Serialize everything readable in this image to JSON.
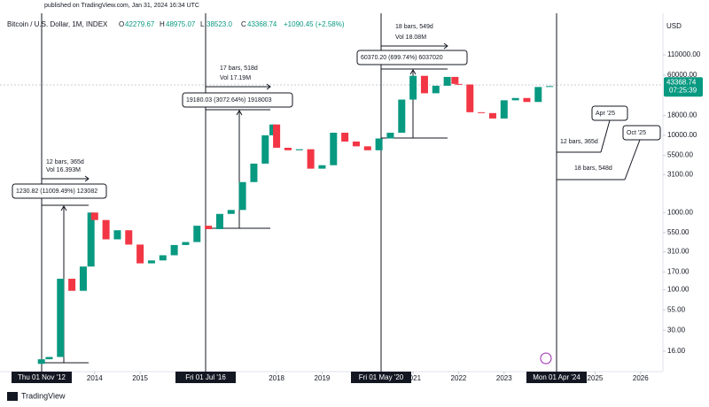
{
  "published": "published on TradingView.com, Jan 31, 2024 16:34 UTC",
  "footer": "TradingView",
  "chart_data": {
    "type": "candlestick",
    "title": "Bitcoin / U.S. Dollar, 1M, INDEX",
    "ohlc": [
      {
        "label": "O",
        "value": "42279.67"
      },
      {
        "label": "H",
        "value": "48975.07"
      },
      {
        "label": "L",
        "value": "38523.0"
      },
      {
        "label": "C",
        "value": "43368.74"
      }
    ],
    "change": "+1090.45 (+2.58%)",
    "currency": "USD",
    "last_price": {
      "value": 43368.74,
      "label": "43368.74"
    },
    "countdown": "07:25:39",
    "colors": {
      "up": "#089981",
      "down": "#f23645"
    },
    "log_scale": true,
    "grid": false,
    "xlim": [
      2011.92,
      2026.53
    ],
    "xticks": [
      2014,
      2015,
      2018,
      2019,
      2021,
      2022,
      2023,
      2025,
      2026
    ],
    "ylim": [
      9.2,
      333000
    ],
    "yticks": [
      {
        "value": 110000,
        "label": "110000.00"
      },
      {
        "value": 60000,
        "label": "60000.00"
      },
      {
        "value": 18000,
        "label": "18000.00"
      },
      {
        "value": 10000,
        "label": "10000.00"
      },
      {
        "value": 5500,
        "label": "5500.00"
      },
      {
        "value": 3100,
        "label": "3100.00"
      },
      {
        "value": 1000,
        "label": "1000.00"
      },
      {
        "value": 550,
        "label": "550.00"
      },
      {
        "value": 310,
        "label": "310.00"
      },
      {
        "value": 170,
        "label": "170.00"
      },
      {
        "value": 100,
        "label": "100.00"
      },
      {
        "value": 55,
        "label": "55.00"
      },
      {
        "value": 30,
        "label": "30.00"
      },
      {
        "value": 16,
        "label": "16.00"
      }
    ],
    "first_open": 11,
    "x": [
      2012.83,
      2013.0,
      2013.25,
      2013.5,
      2013.75,
      2013.92,
      2014.0,
      2014.25,
      2014.5,
      2014.75,
      2015.0,
      2015.25,
      2015.5,
      2015.75,
      2016.0,
      2016.25,
      2016.5,
      2016.75,
      2017.0,
      2017.25,
      2017.5,
      2017.75,
      2017.92,
      2018.0,
      2018.25,
      2018.5,
      2018.75,
      2019.0,
      2019.25,
      2019.5,
      2019.75,
      2020.0,
      2020.25,
      2020.5,
      2020.75,
      2021.0,
      2021.25,
      2021.5,
      2021.75,
      2021.92,
      2022.0,
      2022.25,
      2022.5,
      2022.75,
      2023.0,
      2023.25,
      2023.5,
      2023.75,
      2024.0
    ],
    "close": [
      12.6,
      13.5,
      139,
      97,
      200,
      1000,
      800,
      450,
      590,
      385,
      220,
      240,
      280,
      380,
      415,
      675,
      610,
      960,
      1080,
      2480,
      4300,
      10000,
      13800,
      6900,
      6400,
      6600,
      3700,
      4100,
      10800,
      8300,
      7200,
      6400,
      9100,
      10800,
      29000,
      58900,
      35000,
      43800,
      57000,
      46300,
      45500,
      19900,
      19400,
      16500,
      28400,
      30400,
      27000,
      42200,
      43369
    ],
    "date_labels": [
      "Thu 01 Nov '12",
      "Fri 01 Jul '16",
      "Fri 01 May '20",
      "Mon 01 Apr '24"
    ],
    "annotations": [
      "12 bars, 365d",
      "Vol 16.393M",
      "1230.82 (11009.49%) 123082",
      "17 bars, 518d",
      "Vol 17.19M",
      "19180.03 (3072.64%) 1918003",
      "18 bars, 549d",
      "Vol 18.08M",
      "60370.20 (699.74%) 6037020",
      "12 bars, 365d",
      "18 bars, 548d",
      "Apr '25",
      "Oct '25"
    ]
  }
}
